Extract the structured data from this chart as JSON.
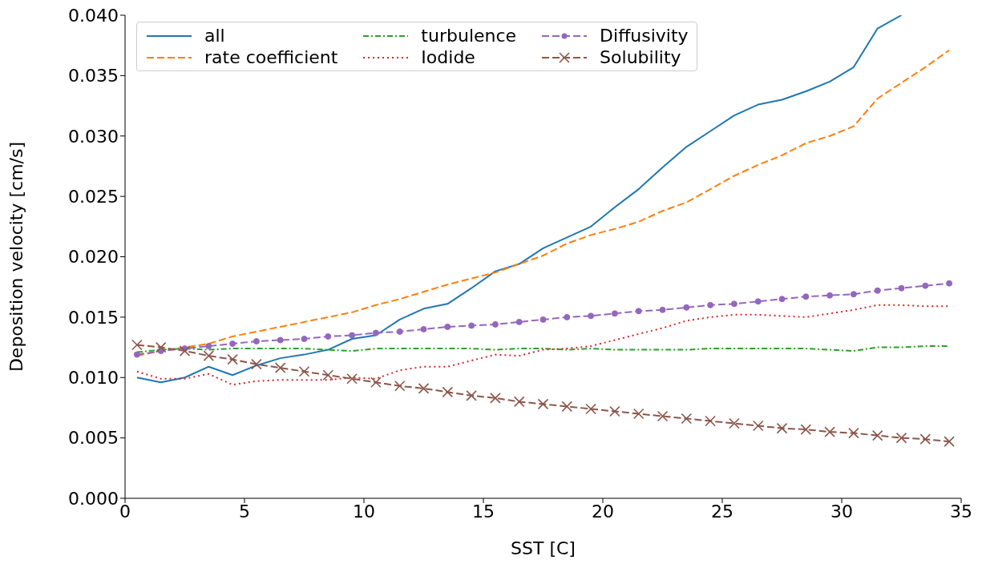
{
  "chart_data": {
    "type": "line",
    "xlabel": "SST [C]",
    "ylabel": "Deposition velocity [cm/s]",
    "x": [
      0.5,
      1.5,
      2.5,
      3.5,
      4.5,
      5.5,
      6.5,
      7.5,
      8.5,
      9.5,
      10.5,
      11.5,
      12.5,
      13.5,
      14.5,
      15.5,
      16.5,
      17.5,
      18.5,
      19.5,
      20.5,
      21.5,
      22.5,
      23.5,
      24.5,
      25.5,
      26.5,
      27.5,
      28.5,
      29.5,
      30.5,
      31.5,
      32.5,
      33.5,
      34.5
    ],
    "xlim": [
      0,
      35
    ],
    "xticks": [
      0,
      5,
      10,
      15,
      20,
      25,
      30,
      35
    ],
    "ylim": [
      0,
      0.04
    ],
    "yticks": [
      {
        "value": 0,
        "label": "0.000"
      },
      {
        "value": 0.005,
        "label": "0.005"
      },
      {
        "value": 0.01,
        "label": "0.010"
      },
      {
        "value": 0.015,
        "label": "0.015"
      },
      {
        "value": 0.02,
        "label": "0.020"
      },
      {
        "value": 0.025,
        "label": "0.025"
      },
      {
        "value": 0.03,
        "label": "0.030"
      },
      {
        "value": 0.035,
        "label": "0.035"
      },
      {
        "value": 0.04,
        "label": "0.040"
      }
    ],
    "legend": "top",
    "series": [
      {
        "name": "all",
        "color": "#1f77b4",
        "line_style": "solid",
        "marker": "none",
        "values": [
          0.01,
          0.0096,
          0.01,
          0.0109,
          0.0102,
          0.011,
          0.0116,
          0.0119,
          0.0123,
          0.0132,
          0.0135,
          0.0148,
          0.0157,
          0.0161,
          0.0174,
          0.0188,
          0.0194,
          0.0207,
          0.0216,
          0.0225,
          0.0241,
          0.0256,
          0.0274,
          0.0291,
          0.0304,
          0.0317,
          0.0326,
          0.033,
          0.0337,
          0.0345,
          0.0357,
          0.0389,
          0.04,
          null,
          null
        ]
      },
      {
        "name": "rate coefficient",
        "color": "#ff7f0e",
        "line_style": "dashed",
        "marker": "none",
        "values": [
          0.0118,
          0.0122,
          0.0125,
          0.0128,
          0.0134,
          0.0138,
          0.0142,
          0.0146,
          0.015,
          0.0154,
          0.016,
          0.0165,
          0.0171,
          0.0177,
          0.0182,
          0.0187,
          0.0194,
          0.0201,
          0.0211,
          0.0218,
          0.0223,
          0.0229,
          0.0238,
          0.0245,
          0.0256,
          0.0267,
          0.0276,
          0.0284,
          0.0294,
          0.03,
          0.0308,
          0.0331,
          0.0344,
          0.0357,
          0.0371
        ]
      },
      {
        "name": "turbulence",
        "color": "#2ca02c",
        "line_style": "dashdot",
        "marker": "none",
        "values": [
          0.0121,
          0.0123,
          0.0124,
          0.0123,
          0.0124,
          0.0124,
          0.0124,
          0.0124,
          0.0123,
          0.0122,
          0.0124,
          0.0124,
          0.0124,
          0.0124,
          0.0124,
          0.0123,
          0.0124,
          0.0124,
          0.0123,
          0.0124,
          0.0123,
          0.0123,
          0.0123,
          0.0123,
          0.0124,
          0.0124,
          0.0124,
          0.0124,
          0.0124,
          0.0123,
          0.0122,
          0.0125,
          0.0125,
          0.0126,
          0.0126
        ]
      },
      {
        "name": "Iodide",
        "color": "#d62728",
        "line_style": "dotted",
        "marker": "none",
        "values": [
          0.0105,
          0.0099,
          0.0099,
          0.0103,
          0.0094,
          0.0097,
          0.0098,
          0.0098,
          0.0098,
          0.01,
          0.0099,
          0.0106,
          0.0109,
          0.0109,
          0.0114,
          0.0119,
          0.0118,
          0.0123,
          0.0124,
          0.0126,
          0.0131,
          0.0136,
          0.0141,
          0.0147,
          0.015,
          0.0152,
          0.0152,
          0.0151,
          0.015,
          0.0153,
          0.0156,
          0.016,
          0.016,
          0.0159,
          0.0159
        ]
      },
      {
        "name": "Diffusivity",
        "color": "#9467bd",
        "line_style": "dashed",
        "marker": "circle",
        "values": [
          0.0119,
          0.0122,
          0.0124,
          0.0126,
          0.0128,
          0.013,
          0.0131,
          0.0132,
          0.0134,
          0.0135,
          0.0137,
          0.0138,
          0.014,
          0.0142,
          0.0143,
          0.0144,
          0.0146,
          0.0148,
          0.015,
          0.0151,
          0.0153,
          0.0155,
          0.0156,
          0.0158,
          0.016,
          0.0161,
          0.0163,
          0.0165,
          0.0167,
          0.0168,
          0.0169,
          0.0172,
          0.0174,
          0.0176,
          0.0178
        ]
      },
      {
        "name": "Solubility",
        "color": "#8c564b",
        "line_style": "dashed",
        "marker": "cross",
        "values": [
          0.0127,
          0.0125,
          0.0122,
          0.0118,
          0.0115,
          0.0111,
          0.0108,
          0.0105,
          0.0102,
          0.0099,
          0.0096,
          0.0093,
          0.0091,
          0.0088,
          0.0085,
          0.0083,
          0.008,
          0.0078,
          0.0076,
          0.0074,
          0.0072,
          0.007,
          0.0068,
          0.0066,
          0.0064,
          0.0062,
          0.006,
          0.0058,
          0.0057,
          0.0055,
          0.0054,
          0.0052,
          0.005,
          0.0049,
          0.0047
        ]
      }
    ]
  }
}
